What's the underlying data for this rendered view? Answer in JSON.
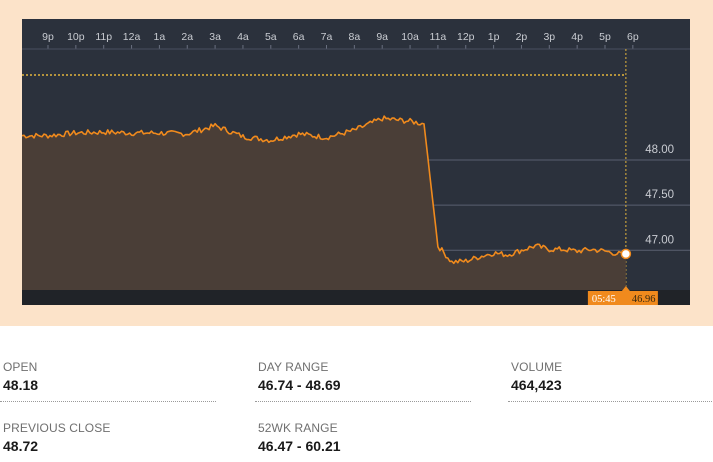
{
  "chart": {
    "time_labels": [
      "9p",
      "10p",
      "11p",
      "12a",
      "1a",
      "2a",
      "3a",
      "4a",
      "5a",
      "6a",
      "7a",
      "8a",
      "9a",
      "10a",
      "11a",
      "12p",
      "1p",
      "2p",
      "3p",
      "4p",
      "5p",
      "6p"
    ],
    "price_labels": [
      "48.00",
      "47.50",
      "47.00"
    ],
    "cursor_time": "05:45",
    "cursor_price": "46.96",
    "colors": {
      "panel_bg": "#2b313c",
      "line": "#f08a1d",
      "fill": "#4a3e37",
      "grid": "#5a6070",
      "tag_bg": "#f08a1d",
      "dotted": "#e3b63d"
    }
  },
  "chart_data": {
    "type": "area",
    "x": [
      "9p",
      "10p",
      "11p",
      "12a",
      "1a",
      "2a",
      "3a",
      "4a",
      "5a",
      "6a",
      "7a",
      "8a",
      "9a",
      "10a",
      "10:30a",
      "11a",
      "11:30a",
      "12p",
      "12:30p",
      "1p",
      "1:30p",
      "2p",
      "2:30p",
      "3p",
      "3:30p",
      "4p",
      "4:30p",
      "5p",
      "5:30p",
      "5:45p"
    ],
    "values": [
      48.27,
      48.3,
      48.31,
      48.3,
      48.3,
      48.29,
      48.38,
      48.26,
      48.22,
      48.29,
      48.25,
      48.33,
      48.46,
      48.43,
      48.4,
      47.05,
      46.87,
      46.88,
      46.93,
      46.97,
      46.95,
      47.0,
      47.05,
      47.01,
      47.01,
      46.99,
      47.01,
      46.99,
      46.96,
      46.96
    ],
    "ylim": [
      46.56,
      49.23
    ],
    "y_ticks": [
      "48.00",
      "47.50",
      "47.00"
    ],
    "x_ticks": [
      "9p",
      "10p",
      "11p",
      "12a",
      "1a",
      "2a",
      "3a",
      "4a",
      "5a",
      "6a",
      "7a",
      "8a",
      "9a",
      "10a",
      "11a",
      "12p",
      "1p",
      "2p",
      "3p",
      "4p",
      "5p",
      "6p"
    ],
    "grid": true,
    "title": "",
    "xlabel": "",
    "ylabel": ""
  },
  "stats": {
    "open": {
      "label": "OPEN",
      "value": "48.18"
    },
    "day_range": {
      "label": "DAY RANGE",
      "value": "46.74 - 48.69"
    },
    "volume": {
      "label": "VOLUME",
      "value": "464,423"
    },
    "prev_close": {
      "label": "PREVIOUS CLOSE",
      "value": "48.72"
    },
    "wk52_range": {
      "label": "52WK RANGE",
      "value": "46.47 - 60.21"
    }
  }
}
